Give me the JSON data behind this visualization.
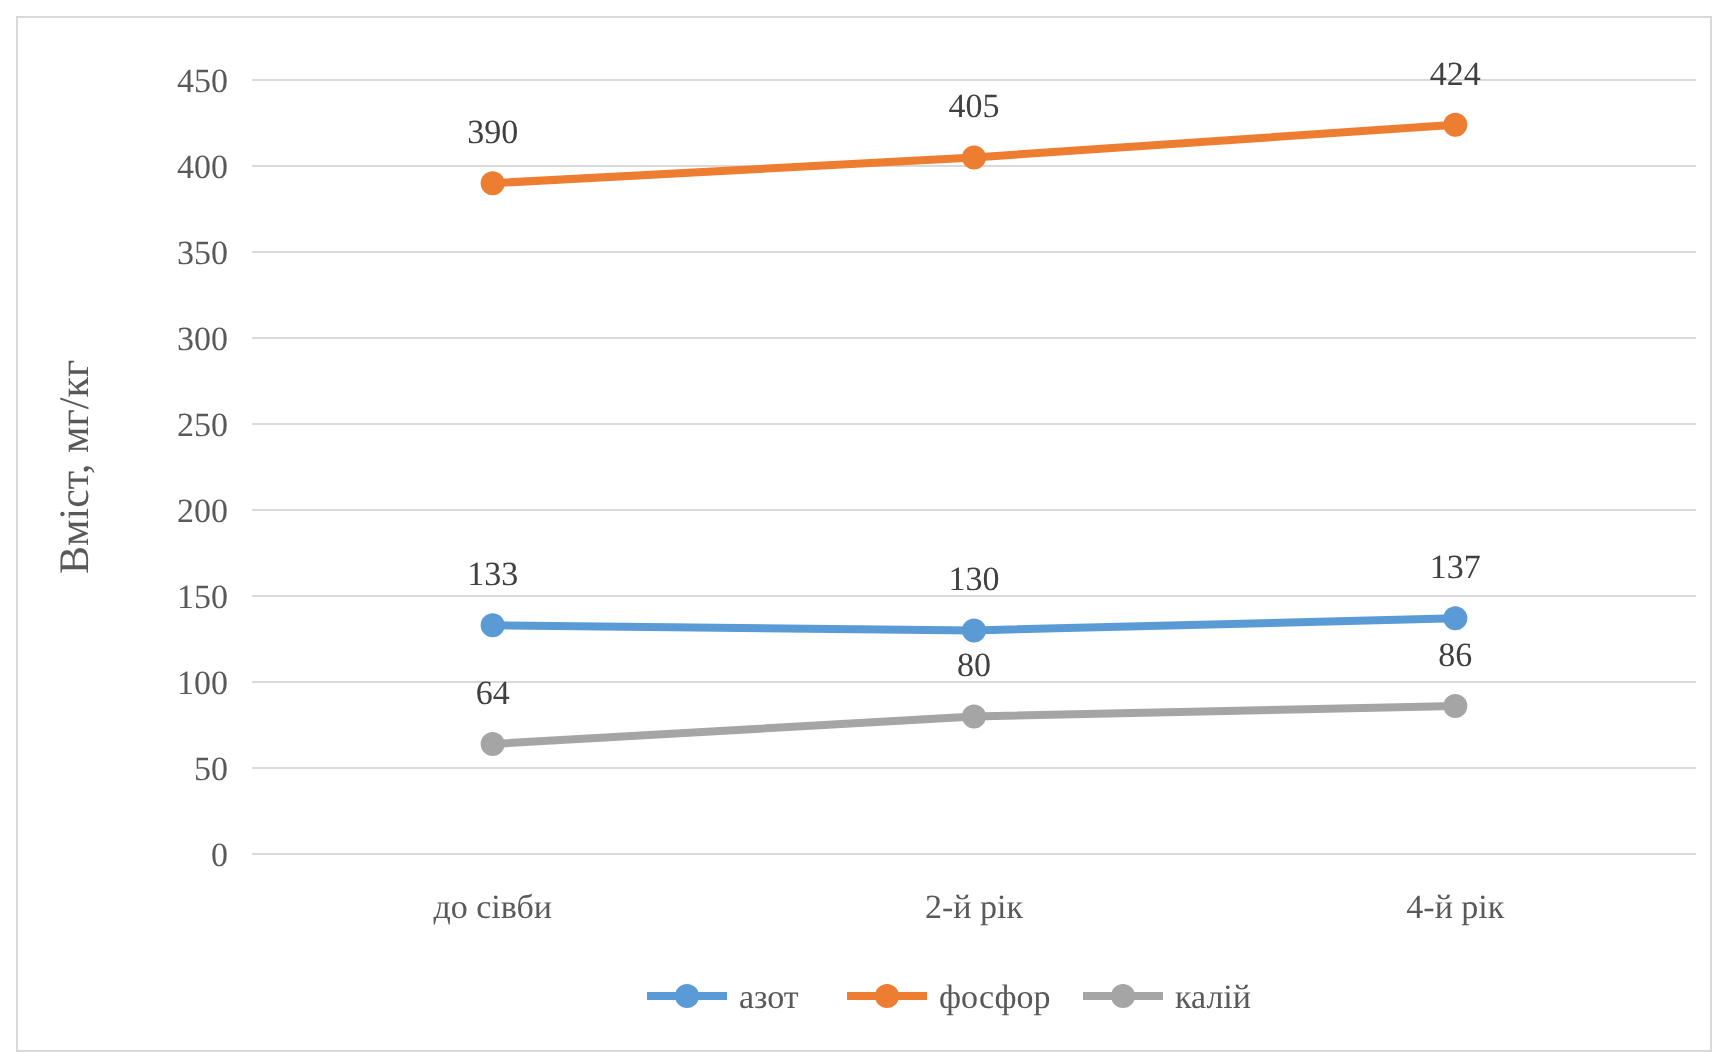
{
  "chart_data": {
    "type": "line",
    "ylabel": "Вміст, мг/кг",
    "categories": [
      "до сівби",
      "2-й рік",
      "4-й рік"
    ],
    "series": [
      {
        "name": "азот",
        "color": "#5b9bd5",
        "values": [
          133,
          130,
          137
        ]
      },
      {
        "name": "фосфор",
        "color": "#ed7d31",
        "values": [
          390,
          405,
          424
        ]
      },
      {
        "name": "калій",
        "color": "#a5a5a5",
        "values": [
          64,
          80,
          86
        ]
      }
    ],
    "ylim": [
      0,
      450
    ],
    "yticks": [
      0,
      50,
      100,
      150,
      200,
      250,
      300,
      350,
      400,
      450
    ],
    "grid": "y",
    "legend": "bottom",
    "marker": "circle",
    "line_style": "solid",
    "data_labels": true
  }
}
